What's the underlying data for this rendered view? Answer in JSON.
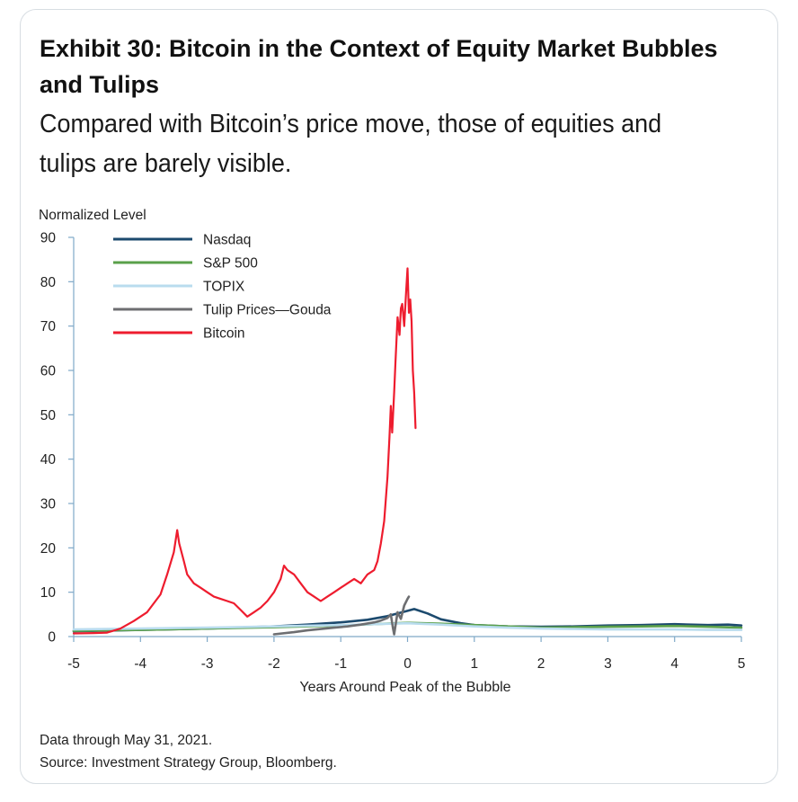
{
  "title": "Exhibit 30: Bitcoin in the Context of Equity Market Bubbles and Tulips",
  "subtitle": "Compared with Bitcoin’s price move, those of equities and tulips are barely visible.",
  "footnotes": {
    "note": "Data through May 31, 2021.",
    "source": "Source: Investment Strategy Group, Bloomberg."
  },
  "chart_data": {
    "type": "line",
    "title": "",
    "xlabel": "Years Around Peak of the Bubble",
    "ylabel": "Normalized Level",
    "xlim": [
      -5,
      5
    ],
    "ylim": [
      0,
      90
    ],
    "xticks": [
      -5,
      -4,
      -3,
      -2,
      -1,
      0,
      1,
      2,
      3,
      4,
      5
    ],
    "yticks": [
      0,
      10,
      20,
      30,
      40,
      50,
      60,
      70,
      80,
      90
    ],
    "grid": false,
    "legend_position": "top-left",
    "series": [
      {
        "name": "Nasdaq",
        "color": "#1c4a6e",
        "x": [
          -5,
          -4,
          -3,
          -2,
          -1.5,
          -1,
          -0.6,
          -0.3,
          0,
          0.1,
          0.3,
          0.5,
          0.8,
          1,
          1.5,
          2,
          2.5,
          3,
          3.5,
          4,
          4.5,
          4.8,
          5
        ],
        "y": [
          1.2,
          1.5,
          1.8,
          2.3,
          2.7,
          3.2,
          3.8,
          4.6,
          5.8,
          6.2,
          5.2,
          3.9,
          3.0,
          2.6,
          2.3,
          2.2,
          2.3,
          2.5,
          2.6,
          2.8,
          2.6,
          2.7,
          2.5
        ]
      },
      {
        "name": "S&P 500",
        "color": "#5aa04a",
        "x": [
          -5,
          -4,
          -3,
          -2,
          -1,
          -0.5,
          0,
          0.5,
          1,
          1.5,
          2,
          2.5,
          3,
          3.5,
          4,
          4.5,
          5
        ],
        "y": [
          1.3,
          1.5,
          1.8,
          2.1,
          2.5,
          2.8,
          3.1,
          2.9,
          2.6,
          2.3,
          2.0,
          2.1,
          2.2,
          2.3,
          2.4,
          2.2,
          2.0
        ]
      },
      {
        "name": "TOPIX",
        "color": "#b9dcee",
        "x": [
          -5,
          -4,
          -3,
          -2,
          -1,
          -0.5,
          0,
          0.5,
          1,
          1.5,
          2,
          2.5,
          3,
          3.5,
          4,
          4.5,
          5
        ],
        "y": [
          1.6,
          1.8,
          2.0,
          2.3,
          2.6,
          2.8,
          3.0,
          2.7,
          2.3,
          2.0,
          1.8,
          1.7,
          1.6,
          1.6,
          1.6,
          1.5,
          1.5
        ]
      },
      {
        "name": "Tulip Prices—Gouda",
        "color": "#6d6e71",
        "x": [
          -2,
          -1.7,
          -1.5,
          -1.3,
          -1.1,
          -0.9,
          -0.7,
          -0.5,
          -0.4,
          -0.3,
          -0.25,
          -0.22,
          -0.2,
          -0.15,
          -0.1,
          -0.05,
          0,
          0.02
        ],
        "y": [
          0.5,
          1.0,
          1.4,
          1.7,
          2.0,
          2.3,
          2.7,
          3.2,
          3.6,
          4.2,
          5.0,
          2.0,
          0.5,
          5.5,
          4.0,
          7.0,
          8.5,
          9.0
        ]
      },
      {
        "name": "Bitcoin",
        "color": "#ee1c2e",
        "x": [
          -5,
          -4.7,
          -4.5,
          -4.3,
          -4.1,
          -3.9,
          -3.7,
          -3.6,
          -3.5,
          -3.45,
          -3.42,
          -3.35,
          -3.3,
          -3.2,
          -3.1,
          -3.0,
          -2.9,
          -2.8,
          -2.7,
          -2.6,
          -2.5,
          -2.4,
          -2.3,
          -2.2,
          -2.1,
          -2.0,
          -1.9,
          -1.85,
          -1.8,
          -1.7,
          -1.6,
          -1.5,
          -1.4,
          -1.3,
          -1.2,
          -1.1,
          -1.0,
          -0.9,
          -0.8,
          -0.7,
          -0.6,
          -0.5,
          -0.45,
          -0.4,
          -0.35,
          -0.3,
          -0.27,
          -0.25,
          -0.23,
          -0.2,
          -0.18,
          -0.15,
          -0.12,
          -0.1,
          -0.08,
          -0.05,
          -0.02,
          0,
          0.02,
          0.04,
          0.06,
          0.08,
          0.1,
          0.12
        ],
        "y": [
          0.7,
          0.8,
          0.9,
          1.8,
          3.5,
          5.5,
          9.5,
          14,
          19,
          24,
          21,
          17,
          14,
          12,
          11,
          10,
          9,
          8.5,
          8,
          7.5,
          6,
          4.5,
          5.5,
          6.5,
          8,
          10,
          13,
          16,
          15,
          14,
          12,
          10,
          9,
          8,
          9,
          10,
          11,
          12,
          13,
          12,
          14,
          15,
          17,
          21,
          26,
          36,
          45,
          52,
          46,
          55,
          62,
          72,
          68,
          74,
          75,
          70,
          78,
          83,
          73,
          76,
          71,
          60,
          55,
          47
        ]
      }
    ]
  }
}
